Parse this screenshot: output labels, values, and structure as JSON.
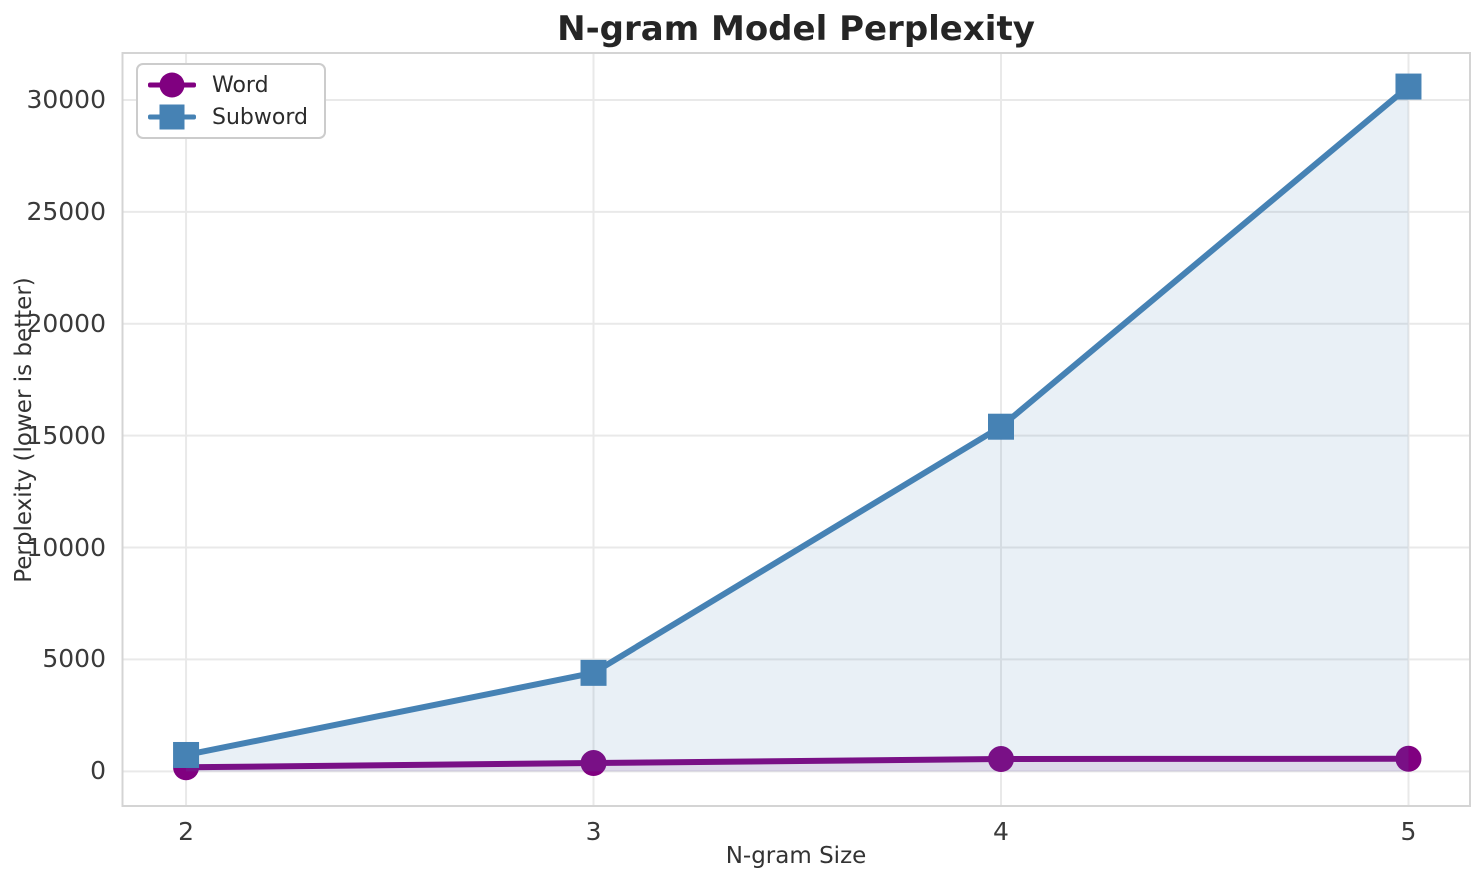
{
  "chart_data": {
    "type": "line",
    "title": "N-gram Model Perplexity",
    "xlabel": "N-gram Size",
    "ylabel": "Perplexity (lower is better)",
    "x": [
      2,
      3,
      4,
      5
    ],
    "series": [
      {
        "name": "Word",
        "color": "#800080",
        "marker": "circle",
        "values": [
          180,
          370,
          550,
          560
        ],
        "fill_to_zero": true,
        "fill_alpha": 0.1
      },
      {
        "name": "Subword",
        "color": "#4682B4",
        "marker": "square",
        "values": [
          730,
          4400,
          15400,
          30600
        ],
        "fill_to_zero": true,
        "fill_alpha": 0.12
      }
    ],
    "xticks": [
      "2",
      "3",
      "4",
      "5"
    ],
    "xtick_values": [
      2,
      3,
      4,
      5
    ],
    "yticks": [
      "0",
      "5000",
      "10000",
      "15000",
      "20000",
      "25000",
      "30000"
    ],
    "ytick_values": [
      0,
      5000,
      10000,
      15000,
      20000,
      25000,
      30000
    ],
    "xlim": [
      1.844,
      5.151
    ],
    "ylim": [
      -1550,
      32100
    ],
    "grid": true,
    "grid_color": "#e9e9e9",
    "spine_color": "#d4d4d4",
    "tick_color": "#3a3a3a",
    "legend_position": "upper left",
    "line_width": 6,
    "marker_size": 26
  }
}
